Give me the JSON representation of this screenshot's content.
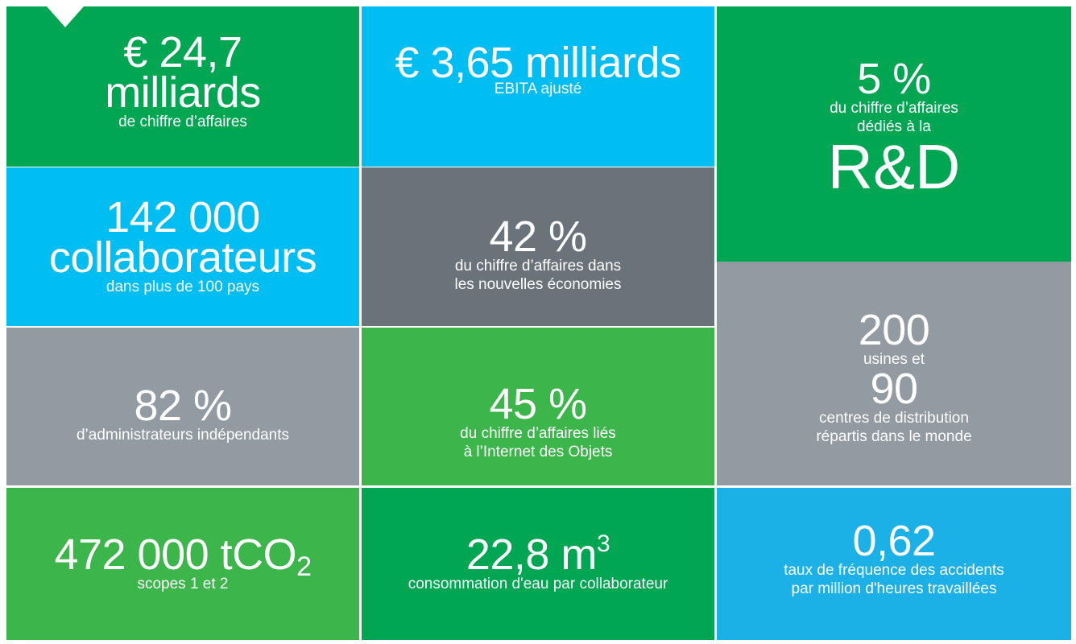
{
  "tiles": [
    {
      "headline": [
        "€ 24,7",
        "milliards"
      ],
      "caption": [
        "de chiffre d’affaires"
      ]
    },
    {
      "headline": [
        "€ 3,65 milliards"
      ],
      "caption": [
        "EBITA ajusté"
      ]
    },
    {
      "headline": [
        "5 %"
      ],
      "caption": [
        "du chiffre d’affaires",
        "dédiés à la"
      ],
      "footer": "R&D"
    },
    {
      "headline": [
        "142 000",
        "collaborateurs"
      ],
      "caption": [
        "dans plus de 100 pays"
      ]
    },
    {
      "headline": [
        "42 %"
      ],
      "caption": [
        "du chiffre d’affaires dans",
        "les nouvelles économies"
      ]
    },
    {
      "headline": [
        "82 %"
      ],
      "caption": [
        "d’administrateurs indépendants"
      ]
    },
    {
      "headline": [
        "45 %"
      ],
      "caption": [
        "du chiffre d’affaires liés",
        "à l’Internet des Objets"
      ]
    },
    {
      "headline": [
        "200"
      ],
      "caption": [
        "usines et"
      ],
      "headline2": "90",
      "caption2": [
        "centres de distribution",
        "répartis dans le monde"
      ]
    },
    {
      "headline": [
        "472 000 tCO"
      ],
      "subscript": "2",
      "caption": [
        "scopes 1 et 2"
      ]
    },
    {
      "headline": [
        "22,8 m"
      ],
      "superscript": "3",
      "caption": [
        "consommation d'eau par collaborateur"
      ]
    },
    {
      "headline": [
        "0,62"
      ],
      "caption": [
        "taux de fréquence des accidents",
        "par million d'heures travaillées"
      ]
    }
  ]
}
